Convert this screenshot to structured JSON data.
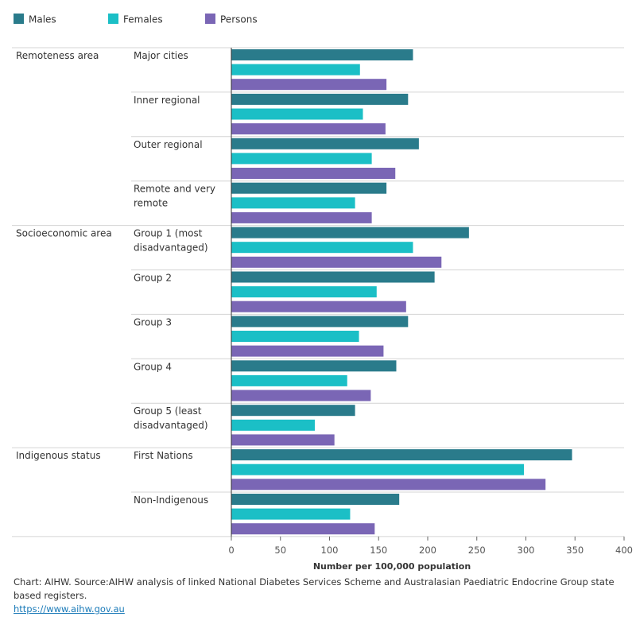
{
  "chart_data": {
    "type": "bar",
    "orientation": "horizontal",
    "series": [
      {
        "name": "Males",
        "color": "#2a7b8b",
        "values": [
          185,
          180,
          191,
          158,
          242,
          207,
          180,
          168,
          126,
          347,
          171
        ]
      },
      {
        "name": "Females",
        "color": "#1bbfc6",
        "values": [
          131,
          134,
          143,
          126,
          185,
          148,
          130,
          118,
          85,
          298,
          121
        ]
      },
      {
        "name": "Persons",
        "color": "#7a66b5",
        "values": [
          158,
          157,
          167,
          143,
          214,
          178,
          155,
          142,
          105,
          320,
          146
        ]
      }
    ],
    "groups": [
      {
        "label": "Remoteness area",
        "categories": [
          "Major cities",
          "Inner regional",
          "Outer regional",
          "Remote and very remote"
        ]
      },
      {
        "label": "Socioeconomic area",
        "categories": [
          "Group 1 (most disadvantaged)",
          "Group 2",
          "Group 3",
          "Group 4",
          "Group 5 (least disadvantaged)"
        ]
      },
      {
        "label": "Indigenous status",
        "categories": [
          "First Nations",
          "Non-Indigenous"
        ]
      }
    ],
    "xlabel": "Number per 100,000 population",
    "xlim": [
      0,
      400
    ],
    "xticks": [
      0,
      50,
      100,
      150,
      200,
      250,
      300,
      350,
      400
    ],
    "legend_position": "top-left",
    "grid": false
  },
  "caption": {
    "text": "Chart: AIHW.  Source:AIHW analysis of linked National Diabetes Services Scheme and Australasian Paediatric Endocrine Group state based registers.",
    "link": "https://www.aihw.gov.au"
  }
}
